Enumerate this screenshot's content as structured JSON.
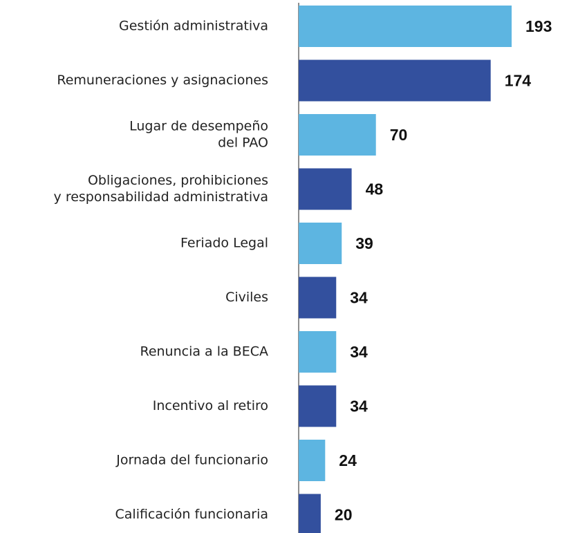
{
  "chart_data": {
    "type": "bar",
    "orientation": "horizontal",
    "categories": [
      [
        "Gestión administrativa"
      ],
      [
        "Remuneraciones y asignaciones"
      ],
      [
        "Lugar de desempeño",
        "del PAO"
      ],
      [
        "Obligaciones, prohibiciones",
        "y responsabilidad administrativa"
      ],
      [
        "Feriado Legal"
      ],
      [
        "Civiles"
      ],
      [
        "Renuncia a la BECA"
      ],
      [
        "Incentivo al retiro"
      ],
      [
        "Jornada del funcionario"
      ],
      [
        "Calificación funcionaria"
      ]
    ],
    "values": [
      193,
      174,
      70,
      48,
      39,
      34,
      34,
      34,
      24,
      20
    ],
    "colors": [
      "#5db5e1",
      "#33509e",
      "#5db5e1",
      "#33509e",
      "#5db5e1",
      "#33509e",
      "#5db5e1",
      "#33509e",
      "#5db5e1",
      "#33509e"
    ]
  }
}
